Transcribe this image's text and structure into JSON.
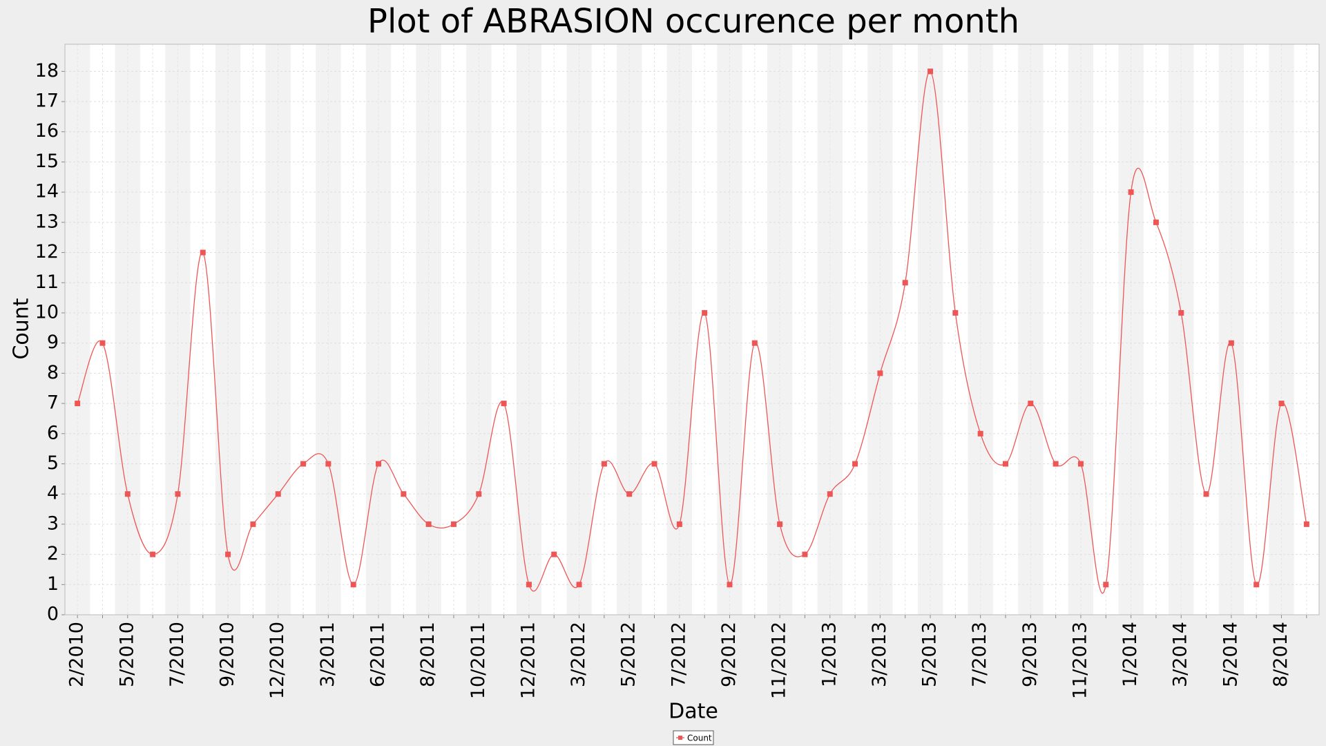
{
  "chart_data": {
    "type": "line",
    "title": "Plot of ABRASION occurence per month",
    "xlabel": "Date",
    "ylabel": "Count",
    "categories": [
      "2/2010",
      null,
      "5/2010",
      null,
      "7/2010",
      null,
      "9/2010",
      null,
      "12/2010",
      null,
      "3/2011",
      null,
      "6/2011",
      null,
      "8/2011",
      null,
      "10/2011",
      null,
      "12/2011",
      null,
      "3/2012",
      null,
      "5/2012",
      null,
      "7/2012",
      null,
      "9/2012",
      null,
      "11/2012",
      null,
      "1/2013",
      null,
      "3/2013",
      null,
      "5/2013",
      null,
      "7/2013",
      null,
      "9/2013",
      null,
      "11/2013",
      null,
      "1/2014",
      null,
      "3/2014",
      null,
      "5/2014",
      null,
      "8/2014",
      null
    ],
    "series": [
      {
        "name": "Count",
        "color": "#ee5555",
        "values": [
          7,
          9,
          4,
          2,
          4,
          12,
          2,
          3,
          4,
          5,
          5,
          1,
          5,
          4,
          3,
          3,
          4,
          7,
          1,
          2,
          1,
          5,
          4,
          5,
          3,
          10,
          1,
          9,
          3,
          2,
          4,
          5,
          8,
          11,
          18,
          10,
          6,
          5,
          7,
          5,
          5,
          1,
          14,
          13,
          10,
          4,
          9,
          1,
          7,
          3
        ]
      }
    ],
    "ylim": [
      0,
      18.9
    ],
    "yticks": [
      0,
      1,
      2,
      3,
      4,
      5,
      6,
      7,
      8,
      9,
      10,
      11,
      12,
      13,
      14,
      15,
      16,
      17,
      18
    ],
    "grid": true,
    "legend": "bottom"
  }
}
